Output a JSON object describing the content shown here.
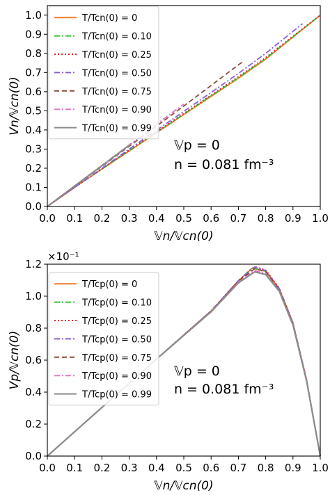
{
  "chart_data": [
    {
      "type": "line",
      "xlabel": "𝕍n/𝕍cn(0)",
      "ylabel": "Vn/𝕍cn(0)",
      "xlim": [
        0.0,
        1.0
      ],
      "ylim": [
        0.0,
        1.05
      ],
      "xticks": [
        "0.0",
        "0.1",
        "0.2",
        "0.3",
        "0.4",
        "0.5",
        "0.6",
        "0.7",
        "0.8",
        "0.9",
        "1.0"
      ],
      "yticks": [
        "0.0",
        "0.1",
        "0.2",
        "0.3",
        "0.4",
        "0.5",
        "0.6",
        "0.7",
        "0.8",
        "0.9",
        "1.0"
      ],
      "xtick_values": [
        0.0,
        0.1,
        0.2,
        0.3,
        0.4,
        0.5,
        0.6,
        0.7,
        0.8,
        0.9,
        1.0
      ],
      "ytick_values": [
        0.0,
        0.1,
        0.2,
        0.3,
        0.4,
        0.5,
        0.6,
        0.7,
        0.8,
        0.9,
        1.0
      ],
      "legend_position": "top-left",
      "annotations": [
        "𝕍p = 0",
        "n =  0.081 fm⁻³"
      ],
      "series": [
        {
          "name": "T/Tcn(0) = 0",
          "color": "#f07c2a",
          "dash": "solid",
          "x": [
            0,
            0.1,
            0.2,
            0.3,
            0.4,
            0.5,
            0.6,
            0.7,
            0.8,
            0.9,
            1.0
          ],
          "y": [
            0,
            0.1,
            0.195,
            0.29,
            0.385,
            0.48,
            0.575,
            0.67,
            0.77,
            0.885,
            1.0
          ]
        },
        {
          "name": "T/Tcn(0) = 0.10",
          "color": "#2ec92e",
          "dash": "dashdot",
          "x": [
            0,
            0.1,
            0.2,
            0.3,
            0.4,
            0.5,
            0.6,
            0.7,
            0.8,
            0.9,
            1.0
          ],
          "y": [
            0,
            0.1,
            0.196,
            0.292,
            0.387,
            0.483,
            0.578,
            0.673,
            0.773,
            0.887,
            1.0
          ]
        },
        {
          "name": "T/Tcn(0) = 0.25",
          "color": "#d62728",
          "dash": "dotted",
          "x": [
            0,
            0.1,
            0.2,
            0.3,
            0.4,
            0.5,
            0.6,
            0.7,
            0.8,
            0.9,
            1.0
          ],
          "y": [
            0,
            0.1,
            0.197,
            0.294,
            0.39,
            0.486,
            0.582,
            0.678,
            0.778,
            0.89,
            1.0
          ]
        },
        {
          "name": "T/Tcn(0) = 0.50",
          "color": "#8a5cd6",
          "dash": "dashdot",
          "x": [
            0,
            0.1,
            0.2,
            0.3,
            0.4,
            0.5,
            0.6,
            0.7,
            0.8,
            0.9,
            0.935
          ],
          "y": [
            0,
            0.1,
            0.2,
            0.3,
            0.398,
            0.497,
            0.596,
            0.695,
            0.8,
            0.915,
            0.955
          ]
        },
        {
          "name": "T/Tcn(0) = 0.75",
          "color": "#8c4a3c",
          "dash": "dashed",
          "x": [
            0,
            0.1,
            0.2,
            0.3,
            0.4,
            0.5,
            0.6,
            0.7,
            0.72
          ],
          "y": [
            0,
            0.105,
            0.21,
            0.315,
            0.42,
            0.525,
            0.632,
            0.74,
            0.76
          ]
        },
        {
          "name": "T/Tcn(0) = 0.90",
          "color": "#e377c2",
          "dash": "dashdot",
          "x": [
            0,
            0.1,
            0.2,
            0.3,
            0.4,
            0.5
          ],
          "y": [
            0,
            0.108,
            0.215,
            0.322,
            0.43,
            0.535
          ]
        },
        {
          "name": "T/Tcn(0) = 0.99",
          "color": "#8c8c8c",
          "dash": "solid",
          "x": [
            0,
            0.1,
            0.2,
            0.3
          ],
          "y": [
            0,
            0.107,
            0.213,
            0.32
          ]
        }
      ]
    },
    {
      "type": "line",
      "xlabel": "𝕍n/𝕍cn(0)",
      "ylabel": "Vp/𝕍cn(0)",
      "xlim": [
        0.0,
        1.0
      ],
      "ylim": [
        0.0,
        0.12
      ],
      "offset_text": "×10⁻¹",
      "xticks": [
        "0.0",
        "0.1",
        "0.2",
        "0.3",
        "0.4",
        "0.5",
        "0.6",
        "0.7",
        "0.8",
        "0.9",
        "1.0"
      ],
      "yticks": [
        "0.0",
        "0.2",
        "0.4",
        "0.6",
        "0.8",
        "1.0",
        "1.2"
      ],
      "xtick_values": [
        0.0,
        0.1,
        0.2,
        0.3,
        0.4,
        0.5,
        0.6,
        0.7,
        0.8,
        0.9,
        1.0
      ],
      "ytick_values": [
        0.0,
        0.02,
        0.04,
        0.06,
        0.08,
        0.1,
        0.12
      ],
      "legend_position": "top-left",
      "annotations": [
        "𝕍p = 0",
        "n =  0.081 fm⁻³"
      ],
      "series": [
        {
          "name": "T/Tcp(0) = 0",
          "color": "#f07c2a",
          "dash": "solid",
          "x": [
            0,
            0.1,
            0.2,
            0.3,
            0.4,
            0.5,
            0.6,
            0.7,
            0.75,
            0.8,
            0.85,
            0.9,
            0.95,
            1.0
          ],
          "y": [
            0,
            0.0152,
            0.0304,
            0.0456,
            0.0607,
            0.0757,
            0.0906,
            0.1095,
            0.1175,
            0.1155,
            0.1045,
            0.083,
            0.0475,
            0
          ]
        },
        {
          "name": "T/Tcp(0) = 0.10",
          "color": "#2ec92e",
          "dash": "dashdot",
          "x": [
            0,
            0.1,
            0.2,
            0.3,
            0.4,
            0.5,
            0.6,
            0.7,
            0.75,
            0.8,
            0.85,
            0.9,
            0.95,
            1.0
          ],
          "y": [
            0,
            0.0152,
            0.0304,
            0.0456,
            0.0607,
            0.0757,
            0.0907,
            0.1096,
            0.1177,
            0.1157,
            0.1046,
            0.0831,
            0.0476,
            0
          ]
        },
        {
          "name": "T/Tcp(0) = 0.25",
          "color": "#d62728",
          "dash": "dotted",
          "x": [
            0,
            0.1,
            0.2,
            0.3,
            0.4,
            0.5,
            0.6,
            0.7,
            0.76,
            0.8,
            0.85,
            0.9,
            0.95,
            1.0
          ],
          "y": [
            0,
            0.0152,
            0.0304,
            0.0456,
            0.0607,
            0.0758,
            0.0908,
            0.1098,
            0.1185,
            0.1163,
            0.105,
            0.0834,
            0.0478,
            0
          ]
        },
        {
          "name": "T/Tcp(0) = 0.50",
          "color": "#8a5cd6",
          "dash": "dashdot",
          "x": [
            0,
            0.1,
            0.2,
            0.3,
            0.4,
            0.5,
            0.6,
            0.7,
            0.76,
            0.8,
            0.85,
            0.9,
            0.95,
            1.0
          ],
          "y": [
            0,
            0.0152,
            0.0304,
            0.0456,
            0.0607,
            0.0758,
            0.0908,
            0.1097,
            0.1182,
            0.116,
            0.1048,
            0.0832,
            0.0477,
            0
          ]
        },
        {
          "name": "T/Tcp(0) = 0.75",
          "color": "#8c4a3c",
          "dash": "dashed",
          "x": [
            0,
            0.1,
            0.2,
            0.3,
            0.4,
            0.5,
            0.6,
            0.7,
            0.76,
            0.8,
            0.85,
            0.9,
            0.95,
            1.0
          ],
          "y": [
            0,
            0.0152,
            0.0304,
            0.0456,
            0.0607,
            0.0757,
            0.0906,
            0.1093,
            0.1172,
            0.1152,
            0.1042,
            0.0828,
            0.0474,
            0
          ]
        },
        {
          "name": "T/Tcp(0) = 0.90",
          "color": "#e377c2",
          "dash": "dashdot",
          "x": [
            0,
            0.1,
            0.2,
            0.3,
            0.4,
            0.5,
            0.6,
            0.7,
            0.76,
            0.8,
            0.85,
            0.9,
            0.95,
            1.0
          ],
          "y": [
            0,
            0.0152,
            0.0304,
            0.0456,
            0.0607,
            0.0756,
            0.0904,
            0.1088,
            0.116,
            0.1142,
            0.1035,
            0.0823,
            0.0471,
            0
          ]
        },
        {
          "name": "T/Tcp(0) = 0.99",
          "color": "#8c8c8c",
          "dash": "solid",
          "x": [
            0,
            0.1,
            0.2,
            0.3,
            0.4,
            0.5,
            0.6,
            0.7,
            0.76,
            0.8,
            0.85,
            0.9,
            0.95,
            1.0
          ],
          "y": [
            0,
            0.0152,
            0.0304,
            0.0455,
            0.0606,
            0.0755,
            0.0902,
            0.1083,
            0.1152,
            0.1135,
            0.103,
            0.082,
            0.0469,
            0
          ]
        }
      ]
    }
  ]
}
